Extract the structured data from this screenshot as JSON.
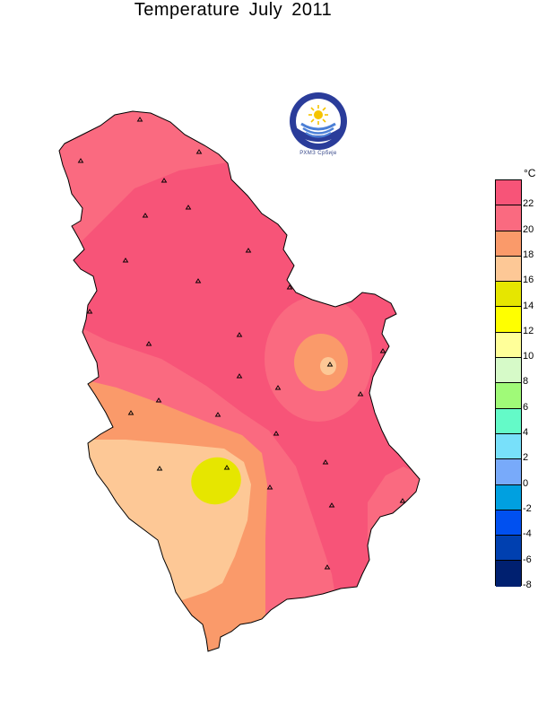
{
  "title": "Temperature  July  2011",
  "logo": {
    "caption": "РХМЗ  Србије"
  },
  "legend": {
    "unit": "°C",
    "labels": [
      "22",
      "20",
      "18",
      "16",
      "14",
      "12",
      "10",
      "8",
      "6",
      "4",
      "2",
      "0",
      "-2",
      "-4",
      "-6",
      "-8"
    ],
    "colors": [
      "#f75478",
      "#fa6a80",
      "#fa9a6a",
      "#fdc896",
      "#e6e600",
      "#ffff00",
      "#ffff99",
      "#d6fac8",
      "#a0fa78",
      "#64fac8",
      "#78e0fa",
      "#78aafa",
      "#00a0e0",
      "#0050f0",
      "#0040b0",
      "#002070"
    ]
  },
  "zones": {
    "warmest": "#f75478",
    "warm": "#fa6a80",
    "mild": "#fa9a6a",
    "cool": "#fdc896",
    "coolest": "#e6e600"
  }
}
